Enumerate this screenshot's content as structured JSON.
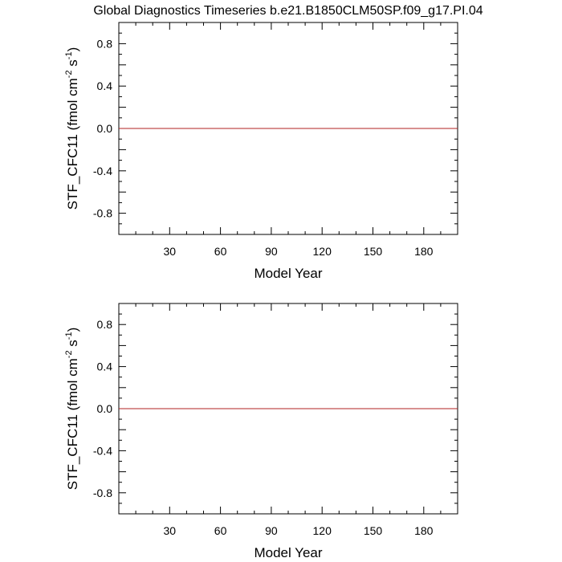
{
  "title": "Global Diagnostics Timeseries b.e21.B1850CLM50SP.f09_g17.PI.04",
  "chart_data": [
    {
      "type": "line",
      "xlabel": "Model Year",
      "ylabel_main": "STF_CFC11 (fmol cm",
      "ylabel_exp1": "-2",
      "ylabel_mid": " s",
      "ylabel_exp2": "-1",
      "ylabel_end": ")",
      "xlim": [
        0,
        200
      ],
      "ylim": [
        -1,
        1
      ],
      "xticks": [
        30,
        60,
        90,
        120,
        150,
        180
      ],
      "xtick_labels": [
        "30",
        "60",
        "90",
        "120",
        "150",
        "180"
      ],
      "yticks": [
        -0.8,
        -0.4,
        0.0,
        0.4,
        0.8
      ],
      "ytick_labels": [
        "-0.8",
        "-0.4",
        "0.0",
        "0.4",
        "0.8"
      ],
      "grid": false,
      "series": [
        {
          "color": "#000000",
          "x": [
            0,
            200
          ],
          "y": [
            0,
            0
          ]
        },
        {
          "color": "#b22222",
          "x": [
            0,
            200
          ],
          "y": [
            0,
            0
          ]
        }
      ]
    },
    {
      "type": "line",
      "xlabel": "Model Year",
      "ylabel_main": "STF_CFC11 (fmol cm",
      "ylabel_exp1": "-2",
      "ylabel_mid": " s",
      "ylabel_exp2": "-1",
      "ylabel_end": ")",
      "xlim": [
        0,
        200
      ],
      "ylim": [
        -1,
        1
      ],
      "xticks": [
        30,
        60,
        90,
        120,
        150,
        180
      ],
      "xtick_labels": [
        "30",
        "60",
        "90",
        "120",
        "150",
        "180"
      ],
      "yticks": [
        -0.8,
        -0.4,
        0.0,
        0.4,
        0.8
      ],
      "ytick_labels": [
        "-0.8",
        "-0.4",
        "0.0",
        "0.4",
        "0.8"
      ],
      "grid": false,
      "series": [
        {
          "color": "#000000",
          "x": [
            0,
            200
          ],
          "y": [
            0,
            0
          ]
        },
        {
          "color": "#b22222",
          "x": [
            0,
            200
          ],
          "y": [
            0,
            0
          ]
        }
      ]
    }
  ]
}
